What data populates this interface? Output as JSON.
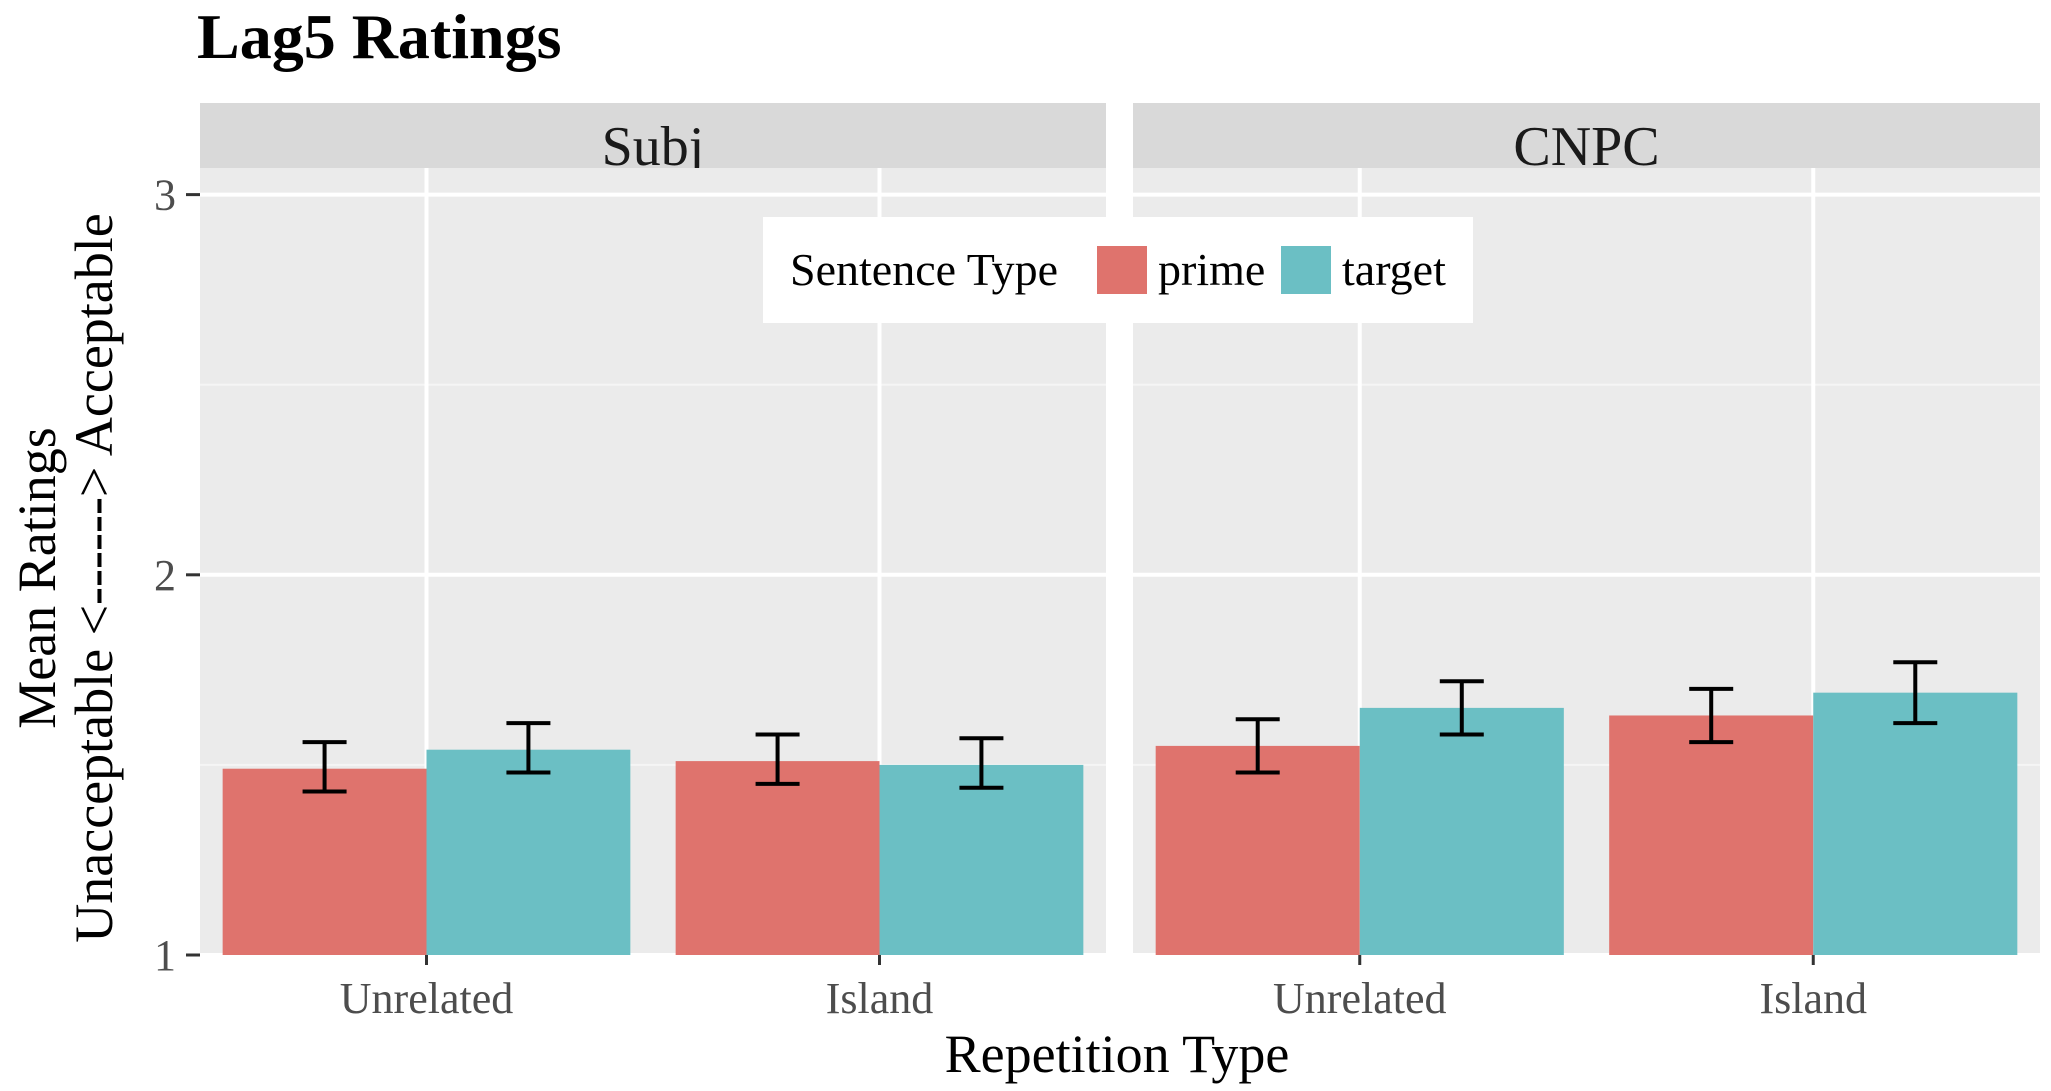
{
  "chart_data": {
    "type": "bar",
    "title": "Lag5 Ratings",
    "xlabel": "Repetition Type",
    "ylabel": [
      "Unacceptable <------> Acceptable",
      "Mean Ratings"
    ],
    "ylim": [
      1,
      3.07
    ],
    "yticks": [
      1,
      2,
      3
    ],
    "grid": true,
    "legend": {
      "title": "Sentence Type",
      "position": "inside-top-center",
      "entries": [
        "prime",
        "target"
      ]
    },
    "categories": [
      "Unrelated",
      "Island"
    ],
    "colors": {
      "prime": "#df736d",
      "target": "#6bbfc4"
    },
    "panels": [
      {
        "name": "Subj",
        "series": [
          {
            "name": "prime",
            "values": [
              1.49,
              1.51
            ],
            "err_low": [
              1.43,
              1.45
            ],
            "err_high": [
              1.56,
              1.58
            ]
          },
          {
            "name": "target",
            "values": [
              1.54,
              1.5
            ],
            "err_low": [
              1.48,
              1.44
            ],
            "err_high": [
              1.61,
              1.57
            ]
          }
        ]
      },
      {
        "name": "CNPC",
        "series": [
          {
            "name": "prime",
            "values": [
              1.55,
              1.63
            ],
            "err_low": [
              1.48,
              1.56
            ],
            "err_high": [
              1.62,
              1.7
            ]
          },
          {
            "name": "target",
            "values": [
              1.65,
              1.69
            ],
            "err_low": [
              1.58,
              1.61
            ],
            "err_high": [
              1.72,
              1.77
            ]
          }
        ]
      }
    ]
  }
}
